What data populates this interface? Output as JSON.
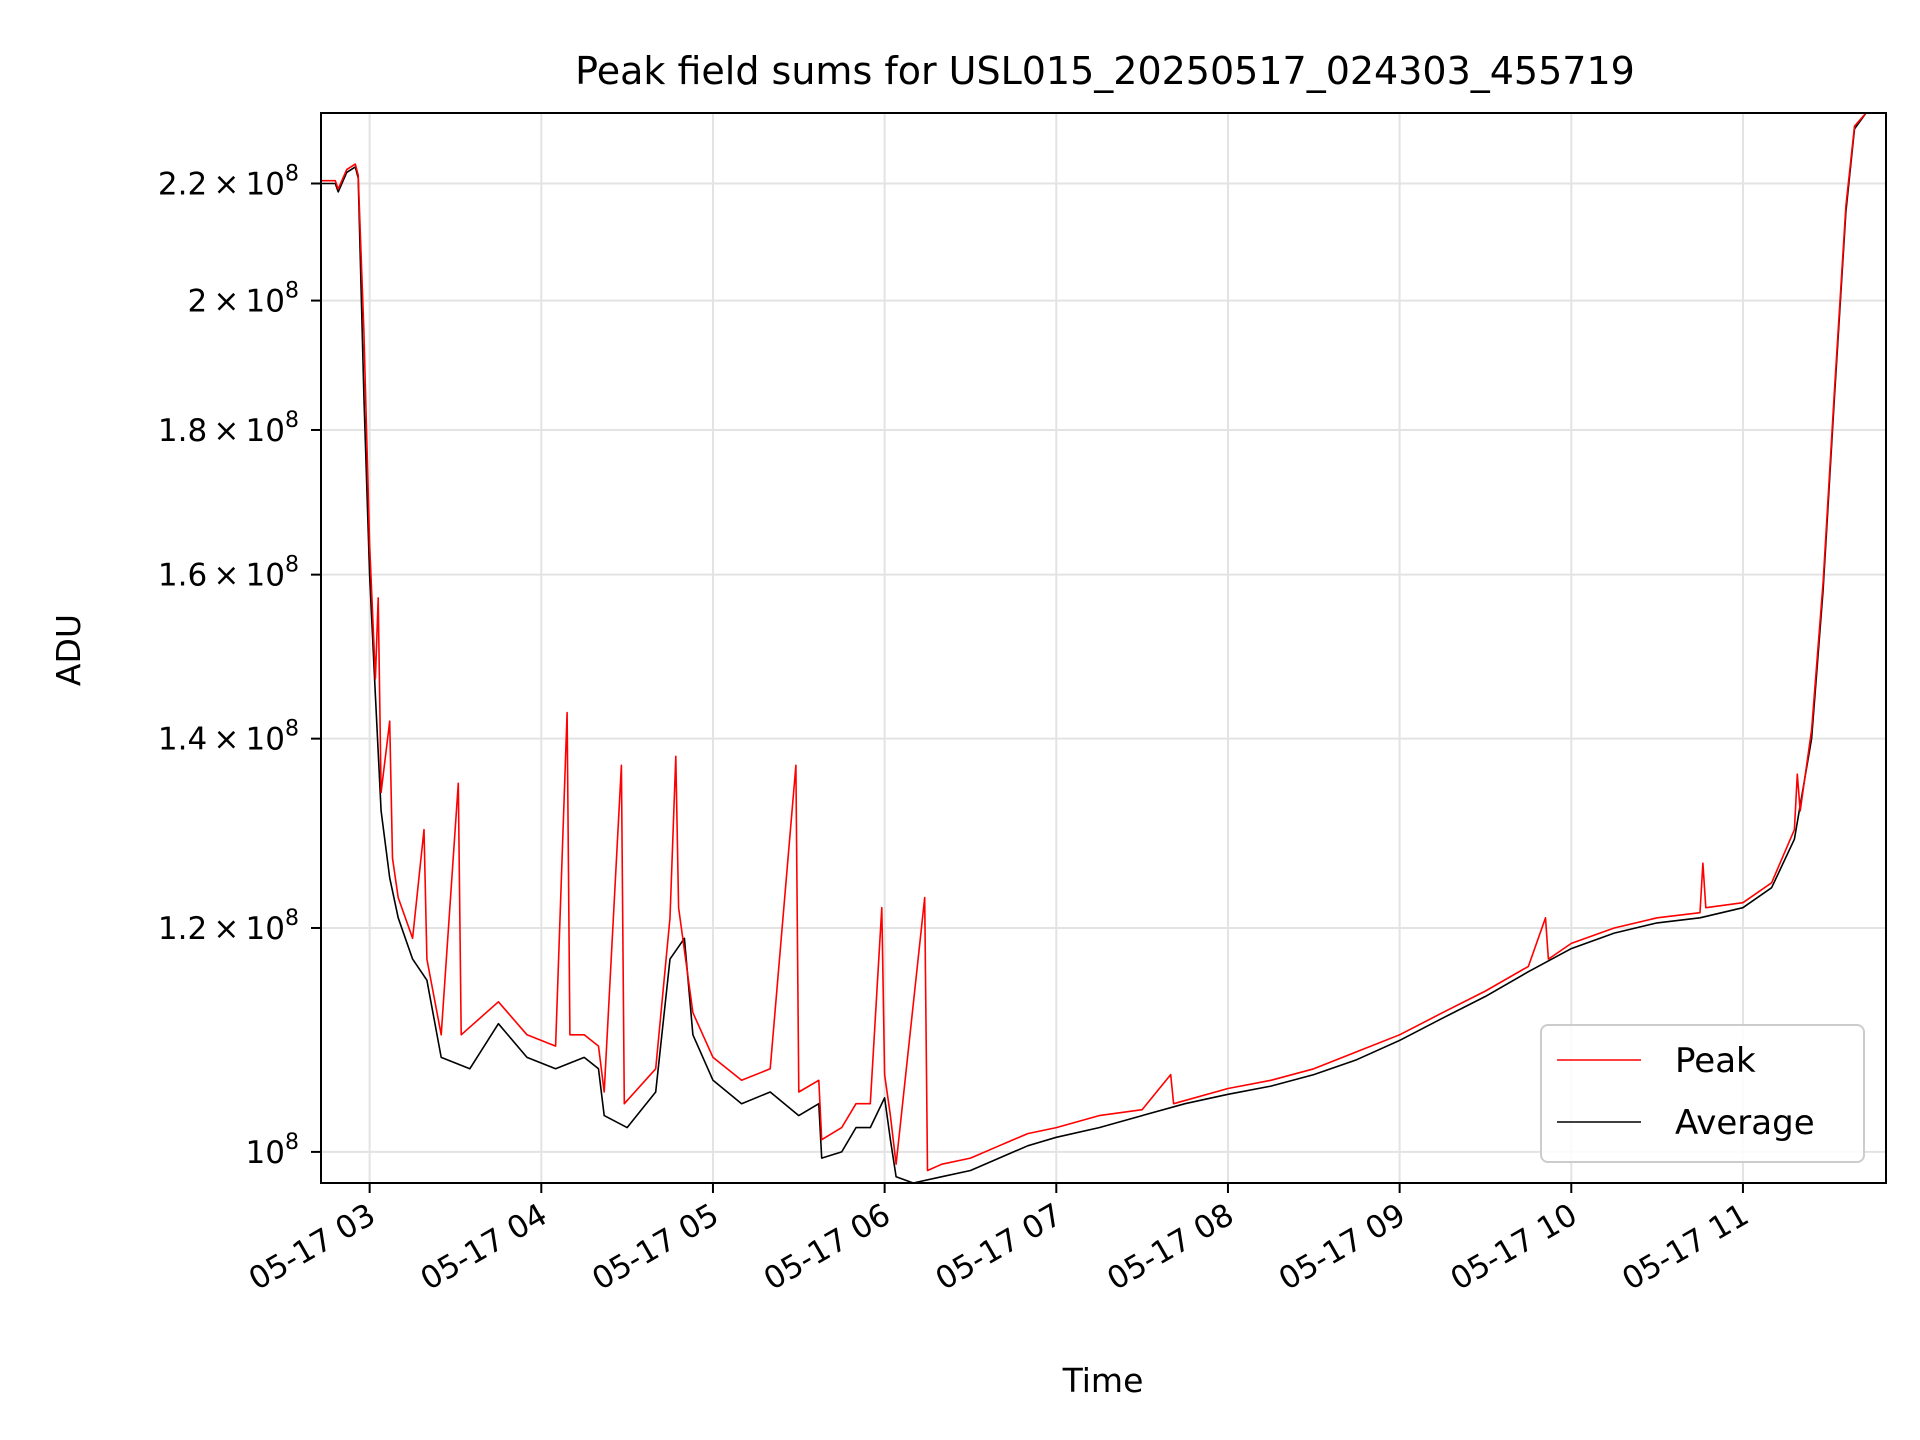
{
  "chart_data": {
    "type": "line",
    "title": "Peak field sums for USL015_20250517_024303_455719",
    "xlabel": "Time",
    "ylabel": "ADU",
    "y_scale": "log",
    "xlim": [
      "2025-05-17 02:43",
      "2025-05-17 11:50"
    ],
    "ylim": [
      97500000.0,
      233000000.0
    ],
    "grid": true,
    "legend_position": "lower-right",
    "x_ticks": [
      "05-17 03",
      "05-17 04",
      "05-17 05",
      "05-17 06",
      "05-17 07",
      "05-17 08",
      "05-17 09",
      "05-17 10",
      "05-17 11"
    ],
    "y_ticks": [
      {
        "value": 100000000.0,
        "mantissa": "",
        "exponent": "8"
      },
      {
        "value": 120000000.0,
        "mantissa": "1.2",
        "exponent": "8"
      },
      {
        "value": 140000000.0,
        "mantissa": "1.4",
        "exponent": "8"
      },
      {
        "value": 160000000.0,
        "mantissa": "1.6",
        "exponent": "8"
      },
      {
        "value": 180000000.0,
        "mantissa": "1.8",
        "exponent": "8"
      },
      {
        "value": 200000000.0,
        "mantissa": "2",
        "exponent": "8"
      },
      {
        "value": 220000000.0,
        "mantissa": "2.2",
        "exponent": "8"
      }
    ],
    "series": [
      {
        "name": "Average",
        "color": "#000000",
        "points": [
          [
            "2025-05-17 02:43",
            220000000.0
          ],
          [
            "2025-05-17 02:48",
            220000000.0
          ],
          [
            "2025-05-17 02:49",
            218500000.0
          ],
          [
            "2025-05-17 02:52",
            222000000.0
          ],
          [
            "2025-05-17 02:55",
            223000000.0
          ],
          [
            "2025-05-17 02:56",
            221000000.0
          ],
          [
            "2025-05-17 02:58",
            185000000.0
          ],
          [
            "2025-05-17 03:00",
            160000000.0
          ],
          [
            "2025-05-17 03:02",
            145000000.0
          ],
          [
            "2025-05-17 03:04",
            132000000.0
          ],
          [
            "2025-05-17 03:07",
            125000000.0
          ],
          [
            "2025-05-17 03:10",
            121000000.0
          ],
          [
            "2025-05-17 03:15",
            117000000.0
          ],
          [
            "2025-05-17 03:20",
            115000000.0
          ],
          [
            "2025-05-17 03:25",
            108000000.0
          ],
          [
            "2025-05-17 03:35",
            107000000.0
          ],
          [
            "2025-05-17 03:45",
            111000000.0
          ],
          [
            "2025-05-17 03:55",
            108000000.0
          ],
          [
            "2025-05-17 04:05",
            107000000.0
          ],
          [
            "2025-05-17 04:15",
            108000000.0
          ],
          [
            "2025-05-17 04:20",
            107000000.0
          ],
          [
            "2025-05-17 04:22",
            103000000.0
          ],
          [
            "2025-05-17 04:30",
            102000000.0
          ],
          [
            "2025-05-17 04:40",
            105000000.0
          ],
          [
            "2025-05-17 04:45",
            117000000.0
          ],
          [
            "2025-05-17 04:50",
            119000000.0
          ],
          [
            "2025-05-17 04:53",
            110000000.0
          ],
          [
            "2025-05-17 05:00",
            106000000.0
          ],
          [
            "2025-05-17 05:10",
            104000000.0
          ],
          [
            "2025-05-17 05:20",
            105000000.0
          ],
          [
            "2025-05-17 05:30",
            103000000.0
          ],
          [
            "2025-05-17 05:37",
            104000000.0
          ],
          [
            "2025-05-17 05:38",
            99500000.0
          ],
          [
            "2025-05-17 05:45",
            100000000.0
          ],
          [
            "2025-05-17 05:50",
            102000000.0
          ],
          [
            "2025-05-17 05:55",
            102000000.0
          ],
          [
            "2025-05-17 06:00",
            104500000.0
          ],
          [
            "2025-05-17 06:02",
            101000000.0
          ],
          [
            "2025-05-17 06:04",
            98000000.0
          ],
          [
            "2025-05-17 06:10",
            97500000.0
          ],
          [
            "2025-05-17 06:20",
            98000000.0
          ],
          [
            "2025-05-17 06:30",
            98500000.0
          ],
          [
            "2025-05-17 06:40",
            99500000.0
          ],
          [
            "2025-05-17 06:50",
            100500000.0
          ],
          [
            "2025-05-17 07:00",
            101200000.0
          ],
          [
            "2025-05-17 07:15",
            102000000.0
          ],
          [
            "2025-05-17 07:30",
            103000000.0
          ],
          [
            "2025-05-17 07:45",
            104000000.0
          ],
          [
            "2025-05-17 08:00",
            104800000.0
          ],
          [
            "2025-05-17 08:15",
            105500000.0
          ],
          [
            "2025-05-17 08:30",
            106500000.0
          ],
          [
            "2025-05-17 08:45",
            107800000.0
          ],
          [
            "2025-05-17 09:00",
            109500000.0
          ],
          [
            "2025-05-17 09:15",
            111500000.0
          ],
          [
            "2025-05-17 09:30",
            113500000.0
          ],
          [
            "2025-05-17 09:45",
            115800000.0
          ],
          [
            "2025-05-17 10:00",
            118000000.0
          ],
          [
            "2025-05-17 10:15",
            119500000.0
          ],
          [
            "2025-05-17 10:30",
            120500000.0
          ],
          [
            "2025-05-17 10:45",
            121000000.0
          ],
          [
            "2025-05-17 11:00",
            122000000.0
          ],
          [
            "2025-05-17 11:10",
            124000000.0
          ],
          [
            "2025-05-17 11:18",
            129000000.0
          ],
          [
            "2025-05-17 11:24",
            140000000.0
          ],
          [
            "2025-05-17 11:28",
            158000000.0
          ],
          [
            "2025-05-17 11:32",
            185000000.0
          ],
          [
            "2025-05-17 11:36",
            215000000.0
          ],
          [
            "2025-05-17 11:39",
            230000000.0
          ],
          [
            "2025-05-17 11:43",
            233000000.0
          ],
          [
            "2025-05-17 11:50",
            233000000.0
          ]
        ]
      },
      {
        "name": "Peak",
        "color": "#ff0000",
        "points": [
          [
            "2025-05-17 02:43",
            220500000.0
          ],
          [
            "2025-05-17 02:48",
            220500000.0
          ],
          [
            "2025-05-17 02:49",
            219000000.0
          ],
          [
            "2025-05-17 02:52",
            222500000.0
          ],
          [
            "2025-05-17 02:55",
            223500000.0
          ],
          [
            "2025-05-17 02:56",
            221500000.0
          ],
          [
            "2025-05-17 02:58",
            195000000.0
          ],
          [
            "2025-05-17 03:00",
            164000000.0
          ],
          [
            "2025-05-17 03:02",
            147000000.0
          ],
          [
            "2025-05-17 03:03",
            157000000.0
          ],
          [
            "2025-05-17 03:04",
            134000000.0
          ],
          [
            "2025-05-17 03:07",
            142000000.0
          ],
          [
            "2025-05-17 03:08",
            127000000.0
          ],
          [
            "2025-05-17 03:10",
            123000000.0
          ],
          [
            "2025-05-17 03:15",
            119000000.0
          ],
          [
            "2025-05-17 03:19",
            130000000.0
          ],
          [
            "2025-05-17 03:20",
            117000000.0
          ],
          [
            "2025-05-17 03:25",
            110000000.0
          ],
          [
            "2025-05-17 03:31",
            135000000.0
          ],
          [
            "2025-05-17 03:32",
            110000000.0
          ],
          [
            "2025-05-17 03:45",
            113000000.0
          ],
          [
            "2025-05-17 03:55",
            110000000.0
          ],
          [
            "2025-05-17 04:05",
            109000000.0
          ],
          [
            "2025-05-17 04:09",
            143000000.0
          ],
          [
            "2025-05-17 04:10",
            110000000.0
          ],
          [
            "2025-05-17 04:15",
            110000000.0
          ],
          [
            "2025-05-17 04:20",
            109000000.0
          ],
          [
            "2025-05-17 04:22",
            105000000.0
          ],
          [
            "2025-05-17 04:28",
            137000000.0
          ],
          [
            "2025-05-17 04:29",
            104000000.0
          ],
          [
            "2025-05-17 04:40",
            107000000.0
          ],
          [
            "2025-05-17 04:45",
            121000000.0
          ],
          [
            "2025-05-17 04:47",
            138000000.0
          ],
          [
            "2025-05-17 04:48",
            122000000.0
          ],
          [
            "2025-05-17 04:53",
            112000000.0
          ],
          [
            "2025-05-17 05:00",
            108000000.0
          ],
          [
            "2025-05-17 05:10",
            106000000.0
          ],
          [
            "2025-05-17 05:20",
            107000000.0
          ],
          [
            "2025-05-17 05:29",
            137000000.0
          ],
          [
            "2025-05-17 05:30",
            105000000.0
          ],
          [
            "2025-05-17 05:37",
            106000000.0
          ],
          [
            "2025-05-17 05:38",
            101000000.0
          ],
          [
            "2025-05-17 05:45",
            102000000.0
          ],
          [
            "2025-05-17 05:50",
            104000000.0
          ],
          [
            "2025-05-17 05:55",
            104000000.0
          ],
          [
            "2025-05-17 05:59",
            122000000.0
          ],
          [
            "2025-05-17 06:00",
            106500000.0
          ],
          [
            "2025-05-17 06:02",
            103000000.0
          ],
          [
            "2025-05-17 06:04",
            99000000.0
          ],
          [
            "2025-05-17 06:14",
            123000000.0
          ],
          [
            "2025-05-17 06:15",
            98500000.0
          ],
          [
            "2025-05-17 06:20",
            99000000.0
          ],
          [
            "2025-05-17 06:30",
            99500000.0
          ],
          [
            "2025-05-17 06:40",
            100500000.0
          ],
          [
            "2025-05-17 06:50",
            101500000.0
          ],
          [
            "2025-05-17 07:00",
            102000000.0
          ],
          [
            "2025-05-17 07:15",
            103000000.0
          ],
          [
            "2025-05-17 07:30",
            103500000.0
          ],
          [
            "2025-05-17 07:40",
            106500000.0
          ],
          [
            "2025-05-17 07:41",
            104000000.0
          ],
          [
            "2025-05-17 08:00",
            105300000.0
          ],
          [
            "2025-05-17 08:15",
            106000000.0
          ],
          [
            "2025-05-17 08:30",
            107000000.0
          ],
          [
            "2025-05-17 08:45",
            108500000.0
          ],
          [
            "2025-05-17 09:00",
            110000000.0
          ],
          [
            "2025-05-17 09:15",
            112000000.0
          ],
          [
            "2025-05-17 09:30",
            114000000.0
          ],
          [
            "2025-05-17 09:45",
            116300000.0
          ],
          [
            "2025-05-17 09:51",
            121000000.0
          ],
          [
            "2025-05-17 09:52",
            117000000.0
          ],
          [
            "2025-05-17 10:00",
            118500000.0
          ],
          [
            "2025-05-17 10:15",
            120000000.0
          ],
          [
            "2025-05-17 10:30",
            121000000.0
          ],
          [
            "2025-05-17 10:45",
            121500000.0
          ],
          [
            "2025-05-17 10:46",
            126500000.0
          ],
          [
            "2025-05-17 10:47",
            122000000.0
          ],
          [
            "2025-05-17 11:00",
            122500000.0
          ],
          [
            "2025-05-17 11:10",
            124500000.0
          ],
          [
            "2025-05-17 11:18",
            130000000.0
          ],
          [
            "2025-05-17 11:19",
            136000000.0
          ],
          [
            "2025-05-17 11:20",
            132000000.0
          ],
          [
            "2025-05-17 11:24",
            141000000.0
          ],
          [
            "2025-05-17 11:28",
            159000000.0
          ],
          [
            "2025-05-17 11:32",
            186000000.0
          ],
          [
            "2025-05-17 11:36",
            216000000.0
          ],
          [
            "2025-05-17 11:39",
            230500000.0
          ],
          [
            "2025-05-17 11:43",
            233000000.0
          ],
          [
            "2025-05-17 11:50",
            233000000.0
          ]
        ]
      }
    ],
    "legend": [
      "Peak",
      "Average"
    ]
  }
}
